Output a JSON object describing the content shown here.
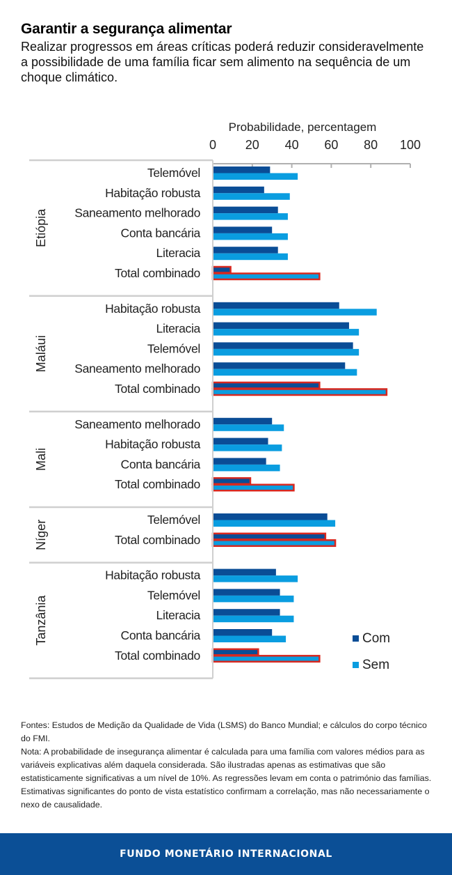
{
  "header": {
    "title": "Garantir a segurança alimentar",
    "subtitle": "Realizar progressos em áreas críticas poderá reduzir consideravelmente a possibilidade de uma família ficar sem alimento na sequência de um choque climático."
  },
  "colors": {
    "com": "#0a4d96",
    "sem": "#0a9de0",
    "highlight_border": "#d8281f",
    "axis": "#b0b0b0"
  },
  "chart_data": {
    "type": "bar",
    "orientation": "horizontal",
    "title": "Garantir a segurança alimentar",
    "xlabel": "Probabilidade, percentagem",
    "ylabel": "",
    "xlim": [
      0,
      100
    ],
    "xticks": [
      0,
      20,
      40,
      60,
      80,
      100
    ],
    "xtick_labels": [
      "0",
      "20",
      "40",
      "60",
      "80",
      "100"
    ],
    "legend": {
      "position": "bottom-right",
      "entries": [
        "Com",
        "Sem"
      ]
    },
    "series_names": [
      "Com",
      "Sem"
    ],
    "highlighted_category": "Total combinado",
    "groups": [
      {
        "name": "Etiópia",
        "categories": [
          "Telemóvel",
          "Habitação robusta",
          "Saneamento melhorado",
          "Conta bancária",
          "Literacia",
          "Total combinado"
        ],
        "com": [
          29,
          26,
          33,
          30,
          33,
          9
        ],
        "sem": [
          43,
          39,
          38,
          38,
          38,
          54
        ]
      },
      {
        "name": "Maláui",
        "categories": [
          "Habitação robusta",
          "Literacia",
          "Telemóvel",
          "Saneamento melhorado",
          "Total combinado"
        ],
        "com": [
          64,
          69,
          71,
          67,
          54
        ],
        "sem": [
          83,
          74,
          74,
          73,
          88
        ]
      },
      {
        "name": "Mali",
        "categories": [
          "Saneamento melhorado",
          "Habitação robusta",
          "Conta bancária",
          "Total combinado"
        ],
        "com": [
          30,
          28,
          27,
          19
        ],
        "sem": [
          36,
          35,
          34,
          41
        ]
      },
      {
        "name": "Níger",
        "categories": [
          "Telemóvel",
          "Total combinado"
        ],
        "com": [
          58,
          57
        ],
        "sem": [
          62,
          62
        ]
      },
      {
        "name": "Tanzânia",
        "categories": [
          "Habitação robusta",
          "Telemóvel",
          "Literacia",
          "Conta bancária",
          "Total combinado"
        ],
        "com": [
          32,
          34,
          34,
          30,
          23
        ],
        "sem": [
          43,
          41,
          41,
          37,
          54
        ]
      }
    ]
  },
  "notes": {
    "sources": "Fontes: Estudos de Medição da Qualidade de Vida (LSMS) do Banco Mundial; e cálculos do corpo técnico do FMI.",
    "note": "Nota: A probabilidade de insegurança alimentar é calculada para uma família com valores médios para as variáveis explicativas além daquela considerada. São ilustradas apenas as estimativas que são estatisticamente significativas a um nível de 10%. As regressões levam em conta o património das famílias. Estimativas significantes do ponto de vista estatístico confirmam a correlação, mas não necessariamente o nexo de causalidade."
  },
  "footer": {
    "organization": "FUNDO MONETÁRIO INTERNACIONAL"
  }
}
